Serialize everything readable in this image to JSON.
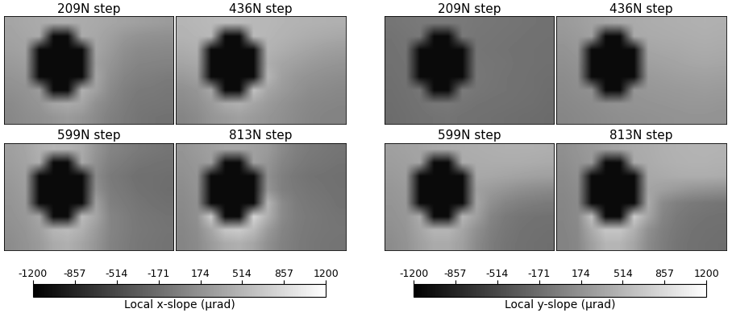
{
  "chart_data": [
    {
      "type": "heatmap",
      "tick_labels": false,
      "colorbar": {
        "label": "Local x-slope (μrad)",
        "range": [
          -1200,
          1200
        ],
        "ticks": [
          -1200,
          -857,
          -514,
          -171,
          174,
          514,
          857,
          1200
        ]
      },
      "panels": [
        {
          "title": "209N step",
          "cells": [
            [
              350,
              380,
              400,
              420,
              430,
              410,
              390,
              360,
              330,
              300,
              280,
              260
            ],
            [
              330,
              360,
              390,
              -1100,
              -1100,
              400,
              370,
              300,
              220,
              180,
              160,
              150
            ],
            [
              300,
              330,
              -1100,
              -1100,
              -1100,
              -1100,
              350,
              250,
              150,
              100,
              90,
              80
            ],
            [
              250,
              280,
              -1100,
              -1100,
              -1100,
              -1100,
              300,
              200,
              100,
              50,
              40,
              30
            ],
            [
              200,
              230,
              -1100,
              -1100,
              -1100,
              -1100,
              350,
              150,
              50,
              0,
              -20,
              -40
            ],
            [
              150,
              180,
              250,
              -1100,
              -1100,
              450,
              300,
              100,
              0,
              -50,
              -60,
              -80
            ],
            [
              100,
              150,
              200,
              350,
              400,
              350,
              150,
              50,
              -30,
              -80,
              -90,
              -100
            ],
            [
              80,
              120,
              150,
              200,
              250,
              200,
              100,
              0,
              -50,
              -100,
              -120,
              -130
            ]
          ]
        },
        {
          "title": "436N step",
          "cells": [
            [
              500,
              520,
              540,
              560,
              550,
              530,
              520,
              500,
              480,
              470,
              460,
              450
            ],
            [
              480,
              500,
              520,
              -1100,
              -1100,
              540,
              510,
              480,
              450,
              420,
              400,
              380
            ],
            [
              420,
              450,
              -1100,
              -1100,
              -1100,
              -1100,
              480,
              430,
              380,
              340,
              300,
              280
            ],
            [
              350,
              380,
              -1100,
              -1100,
              -1100,
              -1100,
              430,
              350,
              300,
              250,
              220,
              200
            ],
            [
              250,
              300,
              -1100,
              -1100,
              -1100,
              -1100,
              500,
              300,
              220,
              180,
              150,
              130
            ],
            [
              150,
              200,
              350,
              -1100,
              -1100,
              600,
              350,
              250,
              180,
              120,
              100,
              80
            ],
            [
              100,
              150,
              250,
              400,
              450,
              350,
              250,
              180,
              120,
              80,
              60,
              50
            ],
            [
              50,
              100,
              200,
              250,
              300,
              250,
              200,
              150,
              100,
              60,
              40,
              30
            ]
          ]
        },
        {
          "title": "599N step",
          "cells": [
            [
              300,
              350,
              450,
              500,
              480,
              400,
              200,
              50,
              0,
              -50,
              -80,
              -100
            ],
            [
              280,
              330,
              420,
              -1100,
              -1100,
              380,
              150,
              0,
              -50,
              -100,
              -120,
              -130
            ],
            [
              250,
              300,
              -1100,
              -1100,
              -1100,
              -1100,
              100,
              -50,
              -100,
              -150,
              -150,
              -160
            ],
            [
              220,
              280,
              -1100,
              -1100,
              -1100,
              -1100,
              150,
              -30,
              -80,
              -130,
              -150,
              -170
            ],
            [
              200,
              250,
              -1100,
              -1100,
              -1100,
              -1100,
              300,
              0,
              -50,
              -100,
              -130,
              -150
            ],
            [
              180,
              230,
              350,
              -1100,
              -1100,
              550,
              350,
              50,
              -20,
              -80,
              -100,
              -120
            ],
            [
              150,
              200,
              300,
              500,
              550,
              450,
              250,
              50,
              -20,
              -70,
              -90,
              -110
            ],
            [
              120,
              180,
              250,
              400,
              450,
              350,
              200,
              30,
              -30,
              -80,
              -100,
              -120
            ]
          ]
        },
        {
          "title": "813N step",
          "cells": [
            [
              200,
              250,
              300,
              350,
              350,
              300,
              250,
              100,
              0,
              -50,
              -80,
              -100
            ],
            [
              180,
              220,
              280,
              -1100,
              -1100,
              300,
              200,
              50,
              -30,
              -80,
              -100,
              -120
            ],
            [
              150,
              200,
              -1100,
              -1100,
              -1100,
              -1100,
              150,
              0,
              -80,
              -120,
              -130,
              -150
            ],
            [
              120,
              180,
              -1100,
              -1100,
              -1100,
              -1100,
              200,
              0,
              -60,
              -100,
              -120,
              -140
            ],
            [
              100,
              150,
              -1100,
              -1100,
              -1100,
              -1100,
              500,
              100,
              -30,
              -80,
              -100,
              -130
            ],
            [
              80,
              150,
              700,
              -1100,
              -1100,
              800,
              450,
              100,
              -20,
              -60,
              -90,
              -110
            ],
            [
              60,
              120,
              350,
              650,
              700,
              550,
              250,
              50,
              -30,
              -70,
              -90,
              -100
            ],
            [
              50,
              100,
              250,
              400,
              450,
              350,
              150,
              20,
              -40,
              -80,
              -100,
              -110
            ]
          ]
        }
      ]
    },
    {
      "type": "heatmap",
      "tick_labels": false,
      "colorbar": {
        "label": "Local y-slope (μrad)",
        "range": [
          -1200,
          1200
        ],
        "ticks": [
          -1200,
          -857,
          -514,
          -171,
          174,
          514,
          857,
          1200
        ]
      },
      "panels": [
        {
          "title": "209N step",
          "cells": [
            [
              -100,
              -80,
              -60,
              -50,
              -50,
              -60,
              -80,
              -90,
              -100,
              -110,
              -120,
              -130
            ],
            [
              -120,
              -100,
              -80,
              -1100,
              -1100,
              -70,
              -90,
              -100,
              -110,
              -120,
              -130,
              -140
            ],
            [
              -130,
              -110,
              -1100,
              -1100,
              -1100,
              -1100,
              -100,
              -110,
              -120,
              -130,
              -140,
              -150
            ],
            [
              -140,
              -120,
              -1100,
              -1100,
              -1100,
              -1100,
              -90,
              -100,
              -110,
              -130,
              -140,
              -150
            ],
            [
              -150,
              -130,
              -1100,
              -1100,
              -1100,
              -1100,
              -80,
              -100,
              -120,
              -130,
              -150,
              -160
            ],
            [
              -160,
              -140,
              -100,
              -1100,
              -1100,
              -50,
              -90,
              -110,
              -120,
              -140,
              -150,
              -170
            ],
            [
              -170,
              -150,
              -120,
              -80,
              -70,
              -100,
              -120,
              -130,
              -140,
              -150,
              -160,
              -180
            ],
            [
              -180,
              -160,
              -140,
              -120,
              -110,
              -130,
              -140,
              -150,
              -160,
              -170,
              -180,
              -190
            ]
          ]
        },
        {
          "title": "436N step",
          "cells": [
            [
              250,
              280,
              320,
              350,
              380,
              400,
              420,
              430,
              440,
              450,
              460,
              450
            ],
            [
              220,
              250,
              300,
              -1100,
              -1100,
              380,
              400,
              410,
              420,
              430,
              440,
              430
            ],
            [
              180,
              220,
              -1100,
              -1100,
              -1100,
              -1100,
              350,
              370,
              380,
              400,
              410,
              400
            ],
            [
              150,
              180,
              -1100,
              -1100,
              -1100,
              -1100,
              300,
              320,
              340,
              360,
              370,
              360
            ],
            [
              120,
              150,
              -1100,
              -1100,
              -1100,
              -1100,
              250,
              270,
              290,
              300,
              310,
              300
            ],
            [
              100,
              130,
              150,
              -1100,
              -1100,
              200,
              220,
              230,
              240,
              250,
              260,
              250
            ],
            [
              80,
              100,
              120,
              150,
              170,
              180,
              190,
              200,
              210,
              220,
              220,
              210
            ],
            [
              60,
              80,
              100,
              120,
              140,
              150,
              160,
              170,
              180,
              190,
              190,
              180
            ]
          ]
        },
        {
          "title": "599N step",
          "cells": [
            [
              300,
              320,
              350,
              380,
              400,
              420,
              430,
              440,
              450,
              450,
              450,
              440
            ],
            [
              280,
              300,
              330,
              -1100,
              -1100,
              400,
              410,
              420,
              420,
              420,
              410,
              400
            ],
            [
              250,
              280,
              -1100,
              -1100,
              -1100,
              -1100,
              380,
              370,
              350,
              330,
              310,
              300
            ],
            [
              220,
              250,
              -1100,
              -1100,
              -1100,
              -1100,
              300,
              250,
              200,
              150,
              120,
              100
            ],
            [
              200,
              230,
              -1100,
              -1100,
              -1100,
              -1100,
              350,
              150,
              50,
              0,
              -30,
              -50
            ],
            [
              180,
              220,
              400,
              -1100,
              -1100,
              500,
              300,
              50,
              -50,
              -100,
              -120,
              -130
            ],
            [
              150,
              200,
              350,
              500,
              500,
              350,
              150,
              0,
              -80,
              -120,
              -140,
              -150
            ],
            [
              120,
              180,
              300,
              400,
              400,
              300,
              100,
              -30,
              -100,
              -130,
              -150,
              -160
            ]
          ]
        },
        {
          "title": "813N step",
          "cells": [
            [
              150,
              200,
              250,
              300,
              350,
              400,
              420,
              450,
              470,
              480,
              490,
              480
            ],
            [
              130,
              180,
              230,
              -1100,
              -1100,
              380,
              410,
              440,
              460,
              470,
              470,
              460
            ],
            [
              100,
              150,
              -1100,
              -1100,
              -1100,
              -1100,
              380,
              400,
              420,
              430,
              430,
              420
            ],
            [
              80,
              120,
              -1100,
              -1100,
              -1100,
              -1100,
              350,
              300,
              250,
              200,
              180,
              160
            ],
            [
              60,
              100,
              -1100,
              -1100,
              -1100,
              -1100,
              400,
              100,
              0,
              -50,
              -80,
              -100
            ],
            [
              50,
              100,
              600,
              -1100,
              -1100,
              700,
              350,
              50,
              -50,
              -100,
              -120,
              -130
            ],
            [
              40,
              80,
              400,
              650,
              650,
              450,
              150,
              0,
              -80,
              -120,
              -140,
              -150
            ],
            [
              30,
              70,
              300,
              500,
              500,
              350,
              100,
              -20,
              -100,
              -130,
              -150,
              -160
            ]
          ]
        }
      ]
    }
  ]
}
